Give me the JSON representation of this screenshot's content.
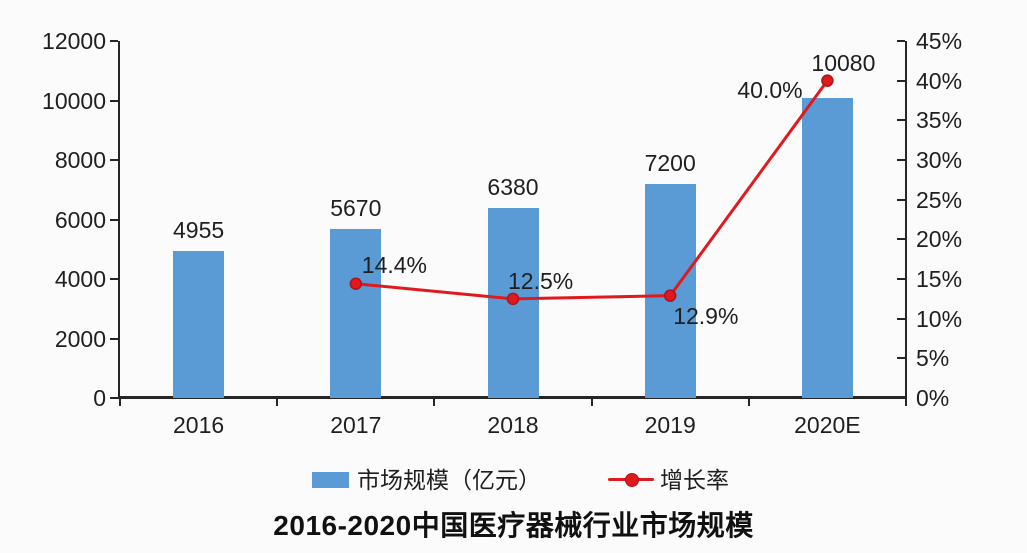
{
  "chart_data": {
    "type": "bar",
    "title": "2016-2020中国医疗器械行业市场规模",
    "categories": [
      "2016",
      "2017",
      "2018",
      "2019",
      "2020E"
    ],
    "series": [
      {
        "name": "市场规模（亿元）",
        "type": "bar",
        "axis": "left",
        "values": [
          4955,
          5670,
          6380,
          7200,
          10080
        ],
        "labels": [
          "4955",
          "5670",
          "6380",
          "7200",
          "10080"
        ],
        "color": "#5B9BD5"
      },
      {
        "name": "增长率",
        "type": "line",
        "axis": "right",
        "values": [
          null,
          14.4,
          12.5,
          12.9,
          40.0
        ],
        "labels": [
          "",
          "14.4%",
          "12.5%",
          "12.9%",
          "40.0%"
        ],
        "color": "#E0191E",
        "marker_stroke": "#B01318"
      }
    ],
    "left_axis": {
      "min": 0,
      "max": 12000,
      "step": 2000,
      "ticks": [
        "0",
        "2000",
        "4000",
        "6000",
        "8000",
        "10000",
        "12000"
      ]
    },
    "right_axis": {
      "min": 0,
      "max": 45,
      "step": 5,
      "ticks": [
        "0%",
        "5%",
        "10%",
        "15%",
        "20%",
        "25%",
        "30%",
        "35%",
        "40%",
        "45%"
      ]
    },
    "legend_position": "bottom",
    "grid": false,
    "colors": {
      "background": "#FBFBFB",
      "axis": "#262626",
      "text": "#1F1F1F"
    }
  }
}
